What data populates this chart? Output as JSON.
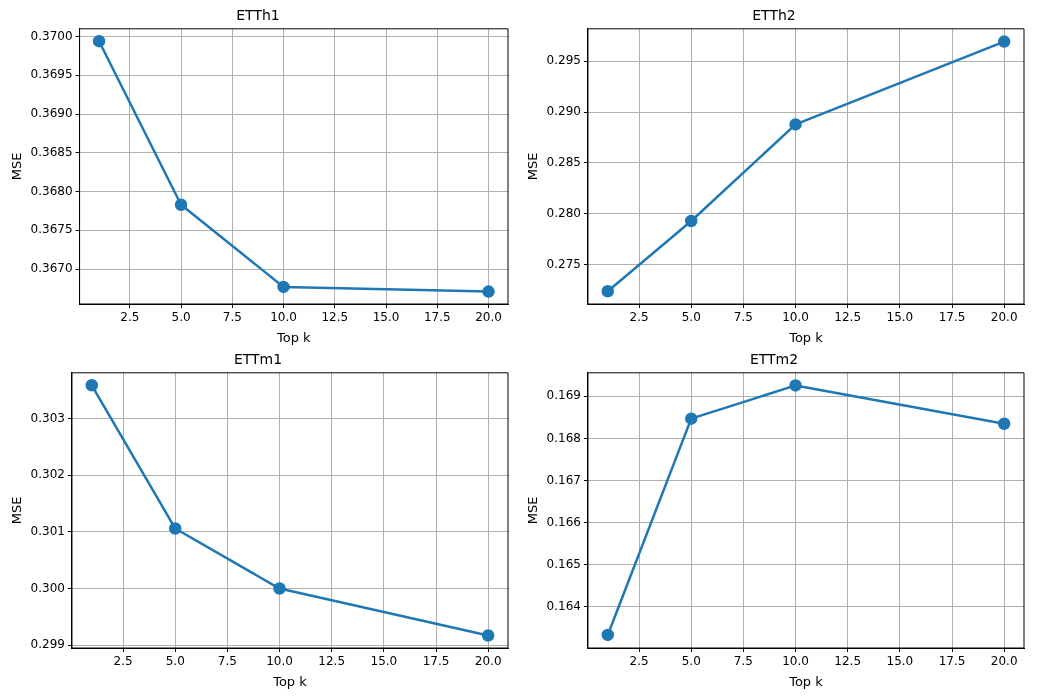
{
  "chart_data": [
    {
      "type": "line",
      "title": "ETTh1",
      "xlabel": "Top k",
      "ylabel": "MSE",
      "x": [
        1,
        5,
        10,
        20
      ],
      "series": [
        {
          "color": "#1f77b4",
          "values": [
            0.36994,
            0.36783,
            0.36677,
            0.36671
          ]
        }
      ],
      "xlim": [
        0.05,
        20.95
      ],
      "xticks": [
        2.5,
        {
          "value": 5,
          "label": "5.0"
        },
        7.5,
        {
          "value": 10,
          "label": "10.0"
        },
        12.5,
        {
          "value": 15,
          "label": "15.0"
        },
        17.5,
        {
          "value": 20,
          "label": "20.0"
        }
      ],
      "ylim": [
        0.36655,
        0.3701
      ],
      "yticks": [
        {
          "value": 0.367,
          "label": "0.3670"
        },
        0.3675,
        {
          "value": 0.368,
          "label": "0.3680"
        },
        0.3685,
        {
          "value": 0.369,
          "label": "0.3690"
        },
        0.3695,
        {
          "value": 0.37,
          "label": "0.3700"
        }
      ],
      "grid": true,
      "marker": "circle",
      "line_style": "solid"
    },
    {
      "type": "line",
      "title": "ETTh2",
      "xlabel": "Top k",
      "ylabel": "MSE",
      "x": [
        1,
        5,
        10,
        20
      ],
      "series": [
        {
          "color": "#1f77b4",
          "values": [
            0.27242,
            0.27931,
            0.28878,
            0.29691
          ]
        }
      ],
      "xlim": [
        0.05,
        20.95
      ],
      "xticks": [
        2.5,
        {
          "value": 5,
          "label": "5.0"
        },
        7.5,
        {
          "value": 10,
          "label": "10.0"
        },
        12.5,
        {
          "value": 15,
          "label": "15.0"
        },
        17.5,
        {
          "value": 20,
          "label": "20.0"
        }
      ],
      "ylim": [
        0.27117,
        0.29816
      ],
      "yticks": [
        0.275,
        {
          "value": 0.28,
          "label": "0.280"
        },
        0.285,
        {
          "value": 0.29,
          "label": "0.290"
        },
        0.295
      ],
      "grid": true,
      "marker": "circle",
      "line_style": "solid"
    },
    {
      "type": "line",
      "title": "ETTm1",
      "xlabel": "Top k",
      "ylabel": "MSE",
      "x": [
        1,
        5,
        10,
        20
      ],
      "series": [
        {
          "color": "#1f77b4",
          "values": [
            0.30359,
            0.30106,
            0.3,
            0.29917
          ]
        }
      ],
      "xlim": [
        0.05,
        20.95
      ],
      "xticks": [
        2.5,
        {
          "value": 5,
          "label": "5.0"
        },
        7.5,
        {
          "value": 10,
          "label": "10.0"
        },
        12.5,
        {
          "value": 15,
          "label": "15.0"
        },
        17.5,
        {
          "value": 20,
          "label": "20.0"
        }
      ],
      "ylim": [
        0.29895,
        0.30381
      ],
      "yticks": [
        0.299,
        {
          "value": 0.3,
          "label": "0.300"
        },
        0.301,
        0.302,
        0.303
      ],
      "grid": true,
      "marker": "circle",
      "line_style": "solid"
    },
    {
      "type": "line",
      "title": "ETTm2",
      "xlabel": "Top k",
      "ylabel": "MSE",
      "x": [
        1,
        5,
        10,
        20
      ],
      "series": [
        {
          "color": "#1f77b4",
          "values": [
            0.16333,
            0.16847,
            0.16926,
            0.16835
          ]
        }
      ],
      "xlim": [
        0.05,
        20.95
      ],
      "xticks": [
        2.5,
        {
          "value": 5,
          "label": "5.0"
        },
        7.5,
        {
          "value": 10,
          "label": "10.0"
        },
        12.5,
        {
          "value": 15,
          "label": "15.0"
        },
        17.5,
        {
          "value": 20,
          "label": "20.0"
        }
      ],
      "ylim": [
        0.16302,
        0.16956
      ],
      "yticks": [
        0.164,
        0.165,
        0.166,
        0.167,
        0.168,
        0.169
      ],
      "grid": true,
      "marker": "circle",
      "line_style": "solid"
    }
  ]
}
